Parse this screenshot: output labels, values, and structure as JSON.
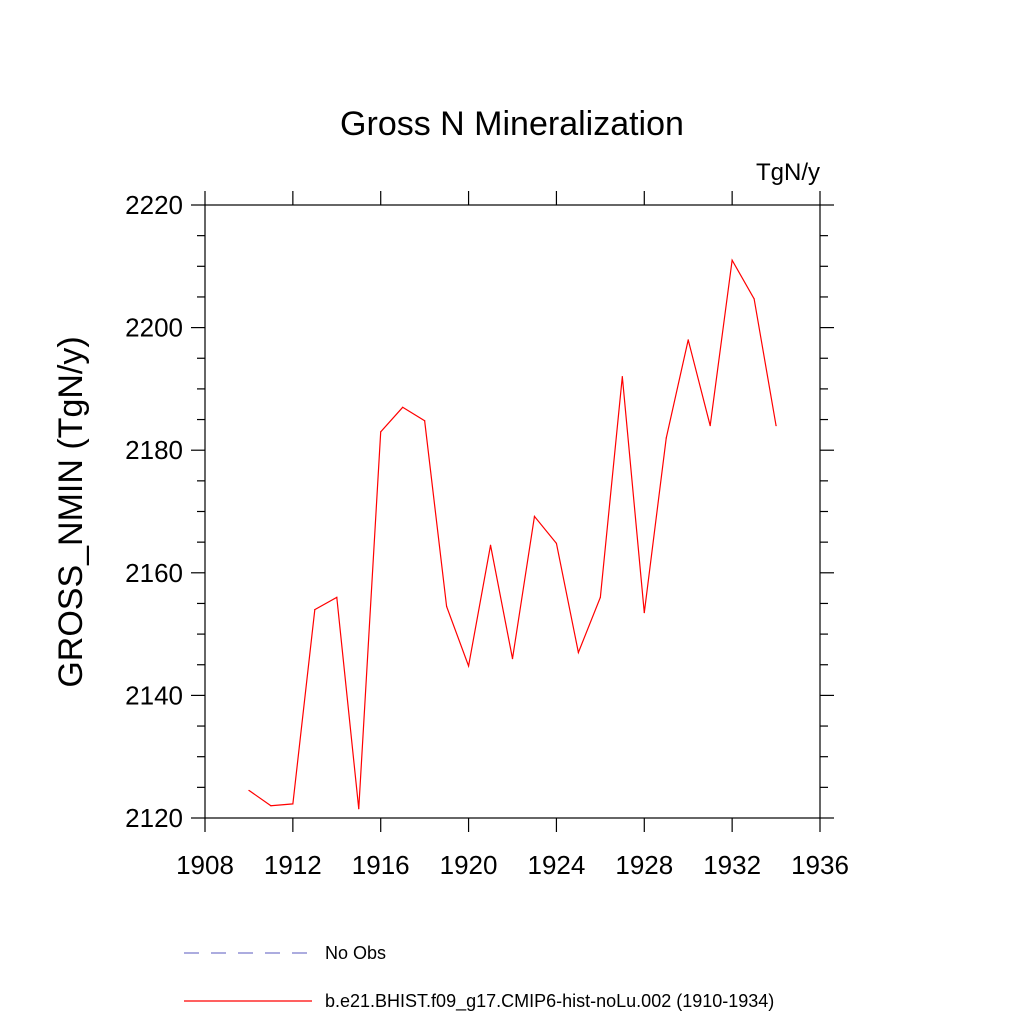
{
  "chart_data": {
    "type": "line",
    "title": "Gross N Mineralization",
    "units_label": "TgN/y",
    "xlabel": "",
    "ylabel": "GROSS_NMIN  (TgN/y)",
    "xlim": [
      1908,
      1936
    ],
    "ylim": [
      2120,
      2220
    ],
    "x_ticks": [
      1908,
      1912,
      1916,
      1920,
      1924,
      1928,
      1932,
      1936
    ],
    "y_ticks": [
      2120,
      2140,
      2160,
      2180,
      2200,
      2220
    ],
    "grid": false,
    "legend_position": "bottom",
    "series": [
      {
        "name": "No Obs",
        "color": "#7a7acc",
        "style": "dashed",
        "x": [],
        "y": []
      },
      {
        "name": "b.e21.BHIST.f09_g17.CMIP6-hist-noLu.002 (1910-1934)",
        "color": "#ff0000",
        "style": "solid",
        "x": [
          1910,
          1911,
          1912,
          1913,
          1914,
          1915,
          1916,
          1917,
          1918,
          1919,
          1920,
          1921,
          1922,
          1923,
          1924,
          1925,
          1926,
          1927,
          1928,
          1929,
          1930,
          1931,
          1932,
          1933,
          1934
        ],
        "y": [
          2124.5,
          2122.0,
          2122.3,
          2154.0,
          2156.0,
          2121.5,
          2183.0,
          2187.0,
          2184.8,
          2154.5,
          2144.8,
          2164.5,
          2146.0,
          2169.2,
          2164.8,
          2147.0,
          2156.0,
          2192.0,
          2153.5,
          2182.0,
          2198.0,
          2184.0,
          2211.0,
          2204.7,
          2184.0
        ]
      }
    ]
  }
}
